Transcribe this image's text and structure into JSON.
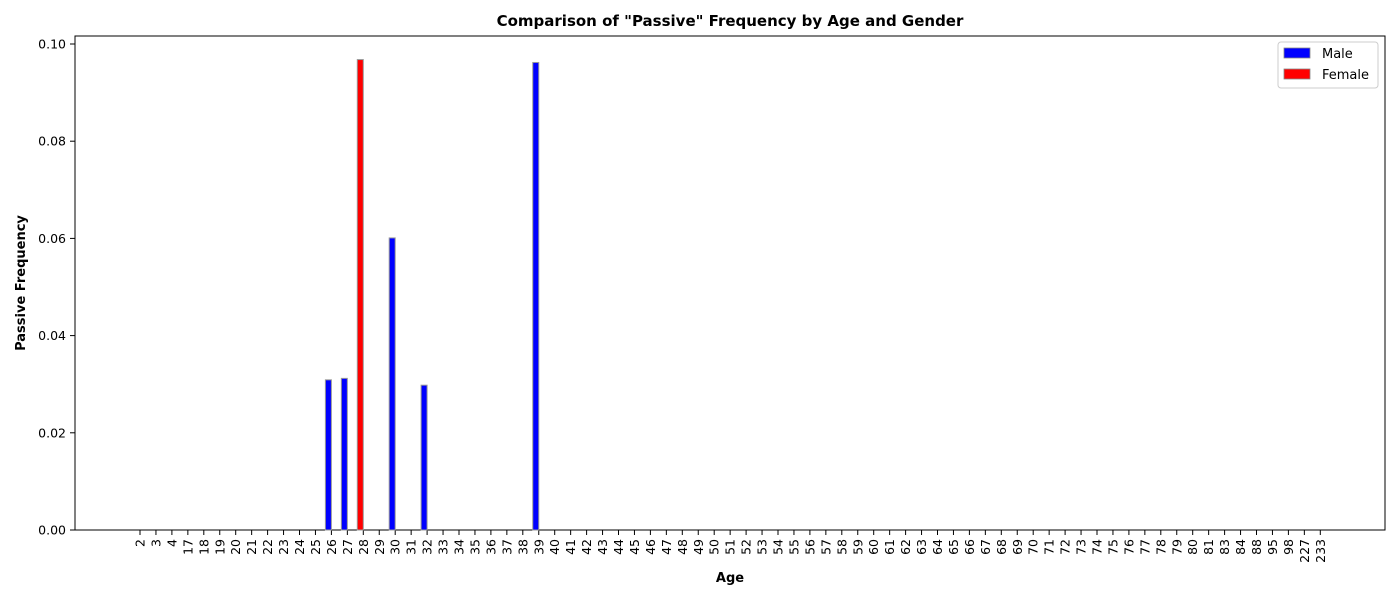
{
  "chart_data": {
    "type": "bar",
    "title": "Comparison of \"Passive\" Frequency by Age and Gender",
    "xlabel": "Age",
    "ylabel": "Passive Frequency",
    "ylim": [
      0,
      0.1
    ],
    "yticks": [
      "0.00",
      "0.02",
      "0.04",
      "0.06",
      "0.08",
      "0.10"
    ],
    "grid": false,
    "legend_position": "top-right",
    "categories": [
      "2",
      "3",
      "4",
      "17",
      "18",
      "19",
      "20",
      "21",
      "22",
      "23",
      "24",
      "25",
      "26",
      "27",
      "28",
      "29",
      "30",
      "31",
      "32",
      "33",
      "34",
      "35",
      "36",
      "37",
      "38",
      "39",
      "40",
      "41",
      "42",
      "43",
      "44",
      "45",
      "46",
      "47",
      "48",
      "49",
      "50",
      "51",
      "52",
      "53",
      "54",
      "55",
      "56",
      "57",
      "58",
      "59",
      "60",
      "61",
      "62",
      "63",
      "64",
      "65",
      "66",
      "67",
      "68",
      "69",
      "70",
      "71",
      "72",
      "73",
      "74",
      "75",
      "76",
      "77",
      "78",
      "79",
      "80",
      "81",
      "83",
      "84",
      "88",
      "95",
      "98",
      "227",
      "233"
    ],
    "series": [
      {
        "name": "Male",
        "color": "#0000ff",
        "values": [
          0,
          0,
          0,
          0,
          0,
          0,
          0,
          0,
          0,
          0,
          0,
          0,
          0.0309,
          0.0312,
          0,
          0,
          0.0601,
          0,
          0.0298,
          0,
          0,
          0,
          0,
          0,
          0,
          0.0962,
          0,
          0,
          0,
          0,
          0,
          0,
          0,
          0,
          0,
          0,
          0,
          0,
          0,
          0,
          0,
          0,
          0,
          0,
          0,
          0,
          0,
          0,
          0,
          0,
          0,
          0,
          0,
          0,
          0,
          0,
          0,
          0,
          0,
          0,
          0,
          0,
          0,
          0,
          0,
          0,
          0,
          0,
          0,
          0,
          0,
          0,
          0,
          0,
          0
        ]
      },
      {
        "name": "Female",
        "color": "#ff0000",
        "values": [
          0,
          0,
          0,
          0,
          0,
          0,
          0,
          0,
          0,
          0,
          0,
          0,
          0,
          0,
          0.0968,
          0,
          0,
          0,
          0,
          0,
          0,
          0,
          0,
          0,
          0,
          0,
          0,
          0,
          0,
          0,
          0,
          0,
          0,
          0,
          0,
          0,
          0,
          0,
          0,
          0,
          0,
          0,
          0,
          0,
          0,
          0,
          0,
          0,
          0,
          0,
          0,
          0,
          0,
          0,
          0,
          0,
          0,
          0,
          0,
          0,
          0,
          0,
          0,
          0,
          0,
          0,
          0,
          0,
          0,
          0,
          0,
          0,
          0,
          0,
          0
        ]
      }
    ]
  }
}
